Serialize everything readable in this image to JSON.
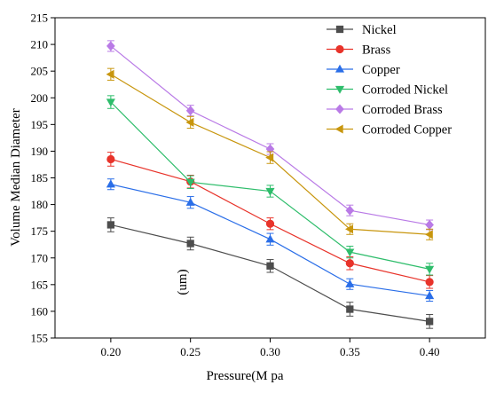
{
  "chart_data": {
    "type": "line",
    "xlabel": "Pressure(M pa",
    "ylabel": "Volume Median Diameter",
    "annotation": "(um)",
    "x": [
      0.2,
      0.25,
      0.3,
      0.35,
      0.4
    ],
    "x_tick_labels": [
      "0.20",
      "0.25",
      "0.30",
      "0.35",
      "0.40"
    ],
    "xlim": [
      0.165,
      0.435
    ],
    "ylim": [
      155,
      215
    ],
    "y_ticks": [
      155,
      160,
      165,
      170,
      175,
      180,
      185,
      190,
      195,
      200,
      205,
      210,
      215
    ],
    "error_bars": true,
    "grid": false,
    "legend_position": "top-right",
    "series": [
      {
        "name": "Nickel",
        "color": "#4d4d4d",
        "marker": "square",
        "values": [
          176.2,
          172.7,
          168.5,
          160.4,
          158.1
        ],
        "errors": [
          1.3,
          1.2,
          1.2,
          1.3,
          1.3
        ]
      },
      {
        "name": "Brass",
        "color": "#e8332a",
        "marker": "circle",
        "values": [
          188.5,
          184.3,
          176.4,
          169.0,
          165.5
        ],
        "errors": [
          1.3,
          1.2,
          1.1,
          1.2,
          1.2
        ]
      },
      {
        "name": "Copper",
        "color": "#2a6ee8",
        "marker": "triangle-up",
        "values": [
          183.8,
          180.4,
          173.5,
          165.1,
          162.9
        ],
        "errors": [
          1.0,
          1.1,
          1.1,
          1.0,
          1.0
        ]
      },
      {
        "name": "Corroded Nickel",
        "color": "#2ebd6b",
        "marker": "triangle-down",
        "values": [
          199.2,
          184.2,
          182.5,
          171.1,
          167.9
        ],
        "errors": [
          1.2,
          1.2,
          1.1,
          1.1,
          1.1
        ]
      },
      {
        "name": "Corroded Brass",
        "color": "#b97ae6",
        "marker": "diamond",
        "values": [
          209.7,
          197.6,
          190.4,
          178.9,
          176.2
        ],
        "errors": [
          1.0,
          1.0,
          1.0,
          1.0,
          0.9
        ]
      },
      {
        "name": "Corroded Copper",
        "color": "#c8960e",
        "marker": "triangle-left",
        "values": [
          204.4,
          195.4,
          188.8,
          175.4,
          174.4
        ],
        "errors": [
          1.1,
          1.1,
          1.1,
          1.0,
          1.0
        ]
      }
    ]
  }
}
